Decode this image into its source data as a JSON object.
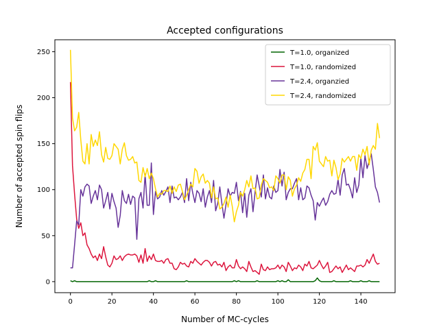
{
  "chart_data": {
    "type": "line",
    "title": "Accepted configurations",
    "xlabel": "Number of MC-cycles",
    "ylabel": "Number of accepted spin flips",
    "xlim": [
      -7.5,
      156.5
    ],
    "ylim": [
      -12,
      263
    ],
    "xticks": [
      0,
      20,
      40,
      60,
      80,
      100,
      120,
      140
    ],
    "yticks": [
      0,
      50,
      100,
      150,
      200,
      250
    ],
    "grid": false,
    "legend_position": "top-right",
    "series": [
      {
        "name": "T=1.0, organized",
        "color": "#006400",
        "values": [
          1,
          0,
          1,
          0,
          0,
          0,
          0,
          0,
          0,
          0,
          0,
          0,
          0,
          0,
          0,
          0,
          0,
          0,
          0,
          0,
          0,
          0,
          0,
          0,
          0,
          0,
          0,
          0,
          0,
          0,
          0,
          0,
          0,
          0,
          0,
          0,
          0,
          0,
          1,
          0,
          0,
          1,
          0,
          0,
          0,
          0,
          0,
          0,
          0,
          0,
          0,
          0,
          0,
          0,
          0,
          0,
          1,
          0,
          0,
          0,
          0,
          0,
          0,
          0,
          0,
          0,
          0,
          0,
          0,
          0,
          0,
          0,
          0,
          0,
          0,
          0,
          0,
          0,
          0,
          1,
          0,
          1,
          0,
          0,
          0,
          0,
          0,
          0,
          0,
          0,
          1,
          0,
          0,
          0,
          0,
          0,
          0,
          0,
          0,
          0,
          1,
          0,
          1,
          0,
          0,
          2,
          0,
          0,
          0,
          0,
          0,
          0,
          0,
          0,
          0,
          0,
          0,
          0,
          1,
          4,
          1,
          0,
          0,
          0,
          0,
          0,
          0,
          1,
          0,
          0,
          0,
          0,
          0,
          0,
          0,
          1,
          0,
          0,
          0,
          0,
          1,
          0,
          0,
          0,
          1,
          0,
          0,
          0,
          0,
          0
        ]
      },
      {
        "name": "T=1.0, randomized",
        "color": "#DC143C",
        "values": [
          217,
          126,
          95,
          68,
          58,
          64,
          50,
          53,
          40,
          36,
          30,
          26,
          28,
          23,
          30,
          25,
          38,
          27,
          18,
          16,
          20,
          28,
          24,
          25,
          28,
          23,
          27,
          29,
          30,
          29,
          29,
          30,
          28,
          21,
          29,
          20,
          36,
          22,
          28,
          24,
          30,
          23,
          22,
          22,
          23,
          20,
          24,
          25,
          20,
          20,
          14,
          13,
          16,
          21,
          19,
          20,
          17,
          16,
          22,
          20,
          25,
          22,
          20,
          18,
          21,
          23,
          23,
          21,
          17,
          21,
          22,
          18,
          19,
          16,
          21,
          12,
          16,
          18,
          15,
          15,
          24,
          17,
          14,
          16,
          14,
          11,
          22,
          16,
          11,
          12,
          10,
          8,
          19,
          13,
          12,
          16,
          13,
          14,
          14,
          15,
          18,
          14,
          18,
          16,
          11,
          21,
          17,
          12,
          15,
          14,
          18,
          16,
          12,
          19,
          17,
          22,
          15,
          14,
          16,
          18,
          23,
          18,
          14,
          17,
          21,
          10,
          11,
          14,
          17,
          14,
          16,
          10,
          14,
          18,
          13,
          15,
          13,
          11,
          17,
          17,
          18,
          16,
          18,
          24,
          20,
          25,
          30,
          22,
          19,
          20
        ]
      },
      {
        "name": "T=2.4, organzied",
        "color": "#663399",
        "values": [
          15,
          15,
          40,
          66,
          62,
          100,
          93,
          103,
          106,
          104,
          85,
          93,
          99,
          89,
          105,
          100,
          80,
          88,
          97,
          79,
          96,
          87,
          80,
          59,
          72,
          99,
          88,
          85,
          95,
          84,
          93,
          91,
          46,
          90,
          97,
          80,
          117,
          83,
          83,
          129,
          73,
          98,
          90,
          92,
          99,
          94,
          98,
          103,
          86,
          104,
          91,
          92,
          89,
          92,
          97,
          86,
          112,
          88,
          108,
          96,
          86,
          99,
          96,
          87,
          101,
          81,
          92,
          99,
          86,
          110,
          77,
          85,
          103,
          85,
          69,
          84,
          101,
          93,
          97,
          96,
          108,
          88,
          98,
          75,
          96,
          70,
          94,
          101,
          76,
          97,
          116,
          104,
          92,
          116,
          90,
          102,
          92,
          90,
          104,
          97,
          99,
          122,
          104,
          119,
          89,
          97,
          101,
          101,
          107,
          112,
          89,
          102,
          89,
          91,
          104,
          102,
          94,
          88,
          67,
          86,
          82,
          87,
          91,
          83,
          87,
          95,
          99,
          95,
          96,
          111,
          94,
          116,
          123,
          105,
          106,
          100,
          91,
          113,
          97,
          105,
          134,
          113,
          137,
          123,
          131,
          139,
          122,
          103,
          97,
          86
        ]
      },
      {
        "name": "T=2.4, randomized",
        "color": "#FFD700",
        "values": [
          252,
          178,
          164,
          168,
          184,
          154,
          131,
          128,
          150,
          128,
          160,
          147,
          154,
          148,
          163,
          138,
          130,
          146,
          134,
          133,
          137,
          150,
          147,
          144,
          128,
          144,
          151,
          137,
          132,
          133,
          136,
          129,
          130,
          110,
          108,
          124,
          114,
          123,
          112,
          118,
          112,
          101,
          92,
          96,
          95,
          99,
          99,
          98,
          104,
          96,
          103,
          98,
          105,
          106,
          98,
          89,
          94,
          100,
          106,
          103,
          123,
          120,
          107,
          114,
          117,
          107,
          110,
          107,
          91,
          103,
          90,
          91,
          79,
          81,
          85,
          92,
          81,
          94,
          82,
          65,
          76,
          83,
          97,
          93,
          100,
          110,
          103,
          115,
          101,
          102,
          90,
          91,
          105,
          112,
          110,
          108,
          102,
          103,
          99,
          115,
          112,
          107,
          116,
          116,
          100,
          114,
          110,
          93,
          101,
          105,
          113,
          109,
          118,
          122,
          133,
          133,
          112,
          147,
          143,
          151,
          131,
          128,
          125,
          136,
          131,
          132,
          115,
          132,
          124,
          111,
          117,
          134,
          130,
          133,
          136,
          131,
          136,
          136,
          121,
          138,
          134,
          144,
          138,
          147,
          127,
          143,
          148,
          144,
          172,
          156
        ]
      }
    ]
  }
}
